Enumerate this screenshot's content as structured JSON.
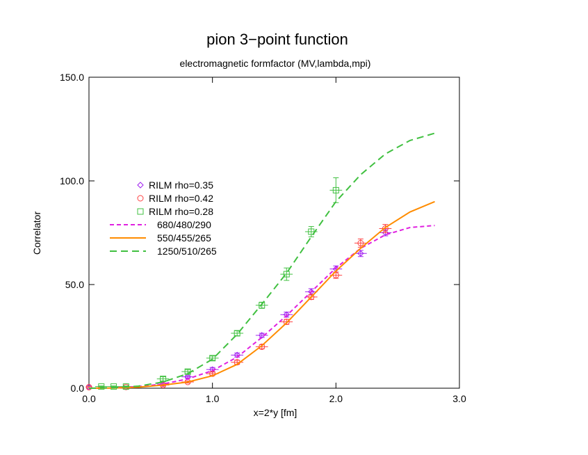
{
  "chart_data": {
    "type": "line",
    "title": "pion 3−point function",
    "subtitle": "electromagnetic formfactor (MV,lambda,mpi)",
    "xlabel": "x=2*y [fm]",
    "ylabel": "Correlator",
    "xlim": [
      0.0,
      3.0
    ],
    "ylim": [
      0.0,
      150.0
    ],
    "xticks": [
      0.0,
      1.0,
      2.0,
      3.0
    ],
    "xtick_labels": [
      "0.0",
      "1.0",
      "2.0",
      "3.0"
    ],
    "yticks": [
      0.0,
      50.0,
      100.0,
      150.0
    ],
    "ytick_labels": [
      "0.0",
      "50.0",
      "100.0",
      "150.0"
    ],
    "grid": false,
    "legend_position": "left",
    "series": [
      {
        "name": "RILM rho=0.35",
        "kind": "points",
        "marker": "diamond",
        "color": "#a020f0",
        "points": [
          {
            "x": 0.0,
            "y": 0.5,
            "err": 0.3,
            "xerr": 0.0
          },
          {
            "x": 0.6,
            "y": 2.0,
            "err": 0.5,
            "xerr": 0.05
          },
          {
            "x": 0.8,
            "y": 5.5,
            "err": 0.6,
            "xerr": 0.05
          },
          {
            "x": 1.0,
            "y": 9.0,
            "err": 1.0,
            "xerr": 0.05
          },
          {
            "x": 1.2,
            "y": 16.0,
            "err": 1.0,
            "xerr": 0.05
          },
          {
            "x": 1.4,
            "y": 25.5,
            "err": 1.0,
            "xerr": 0.05
          },
          {
            "x": 1.6,
            "y": 35.5,
            "err": 1.2,
            "xerr": 0.05
          },
          {
            "x": 1.8,
            "y": 46.5,
            "err": 1.5,
            "xerr": 0.05
          },
          {
            "x": 2.0,
            "y": 57.5,
            "err": 1.5,
            "xerr": 0.05
          },
          {
            "x": 2.2,
            "y": 65.0,
            "err": 1.5,
            "xerr": 0.05
          },
          {
            "x": 2.4,
            "y": 75.0,
            "err": 1.5,
            "xerr": 0.05
          }
        ]
      },
      {
        "name": "RILM rho=0.42",
        "kind": "points",
        "marker": "circle",
        "color": "#ff4040",
        "points": [
          {
            "x": 0.0,
            "y": 0.5,
            "err": 0.3,
            "xerr": 0.0
          },
          {
            "x": 0.3,
            "y": 0.6,
            "err": 0.3,
            "xerr": 0.05
          },
          {
            "x": 0.6,
            "y": 1.5,
            "err": 0.5,
            "xerr": 0.05
          },
          {
            "x": 0.8,
            "y": 3.0,
            "err": 0.5,
            "xerr": 0.05
          },
          {
            "x": 1.0,
            "y": 7.0,
            "err": 0.8,
            "xerr": 0.05
          },
          {
            "x": 1.2,
            "y": 12.5,
            "err": 1.0,
            "xerr": 0.05
          },
          {
            "x": 1.4,
            "y": 20.0,
            "err": 1.0,
            "xerr": 0.05
          },
          {
            "x": 1.6,
            "y": 32.0,
            "err": 1.2,
            "xerr": 0.05
          },
          {
            "x": 1.8,
            "y": 44.0,
            "err": 1.2,
            "xerr": 0.05
          },
          {
            "x": 2.0,
            "y": 54.5,
            "err": 1.5,
            "xerr": 0.05
          },
          {
            "x": 2.2,
            "y": 70.0,
            "err": 2.0,
            "xerr": 0.05
          },
          {
            "x": 2.4,
            "y": 77.0,
            "err": 2.0,
            "xerr": 0.05
          }
        ]
      },
      {
        "name": "RILM rho=0.28",
        "kind": "points",
        "marker": "square",
        "color": "#40c040",
        "points": [
          {
            "x": 0.1,
            "y": 0.8,
            "err": 0.3,
            "xerr": 0.05
          },
          {
            "x": 0.2,
            "y": 0.8,
            "err": 0.3,
            "xerr": 0.05
          },
          {
            "x": 0.3,
            "y": 0.8,
            "err": 0.3,
            "xerr": 0.05
          },
          {
            "x": 0.6,
            "y": 4.5,
            "err": 1.0,
            "xerr": 0.05
          },
          {
            "x": 0.8,
            "y": 8.0,
            "err": 1.0,
            "xerr": 0.05
          },
          {
            "x": 1.0,
            "y": 14.5,
            "err": 1.0,
            "xerr": 0.05
          },
          {
            "x": 1.2,
            "y": 26.5,
            "err": 1.2,
            "xerr": 0.05
          },
          {
            "x": 1.4,
            "y": 40.0,
            "err": 1.5,
            "xerr": 0.05
          },
          {
            "x": 1.6,
            "y": 55.0,
            "err": 3.0,
            "xerr": 0.05
          },
          {
            "x": 1.8,
            "y": 75.5,
            "err": 2.5,
            "xerr": 0.05
          },
          {
            "x": 2.0,
            "y": 95.5,
            "err": 6.0,
            "xerr": 0.05
          }
        ]
      },
      {
        "name": "680/480/290",
        "kind": "line",
        "dash": "6,4",
        "color": "#e020e0",
        "width": 2,
        "x": [
          0.0,
          0.2,
          0.4,
          0.6,
          0.8,
          1.0,
          1.2,
          1.4,
          1.6,
          1.8,
          2.0,
          2.2,
          2.4,
          2.6,
          2.8
        ],
        "y": [
          0.0,
          0.2,
          0.8,
          2.0,
          4.5,
          8.5,
          15.0,
          24.5,
          35.0,
          46.5,
          58.0,
          67.5,
          74.0,
          77.5,
          78.5
        ]
      },
      {
        "name": "550/455/265",
        "kind": "line",
        "dash": "",
        "color": "#ff8c00",
        "width": 2,
        "x": [
          0.0,
          0.2,
          0.4,
          0.6,
          0.8,
          1.0,
          1.2,
          1.4,
          1.6,
          1.8,
          2.0,
          2.2,
          2.4,
          2.6,
          2.8
        ],
        "y": [
          0.0,
          0.1,
          0.5,
          1.5,
          3.0,
          6.0,
          11.5,
          20.5,
          31.5,
          44.0,
          56.5,
          67.5,
          77.5,
          85.0,
          90.0
        ]
      },
      {
        "name": "1250/510/265",
        "kind": "line",
        "dash": "10,6",
        "color": "#40c040",
        "width": 2,
        "x": [
          0.0,
          0.2,
          0.4,
          0.6,
          0.8,
          1.0,
          1.2,
          1.4,
          1.6,
          1.8,
          2.0,
          2.2,
          2.4,
          2.6,
          2.8
        ],
        "y": [
          0.0,
          0.2,
          1.0,
          3.0,
          7.0,
          14.0,
          26.0,
          40.5,
          55.5,
          73.0,
          90.0,
          103.0,
          113.0,
          119.5,
          123.0
        ]
      }
    ]
  }
}
